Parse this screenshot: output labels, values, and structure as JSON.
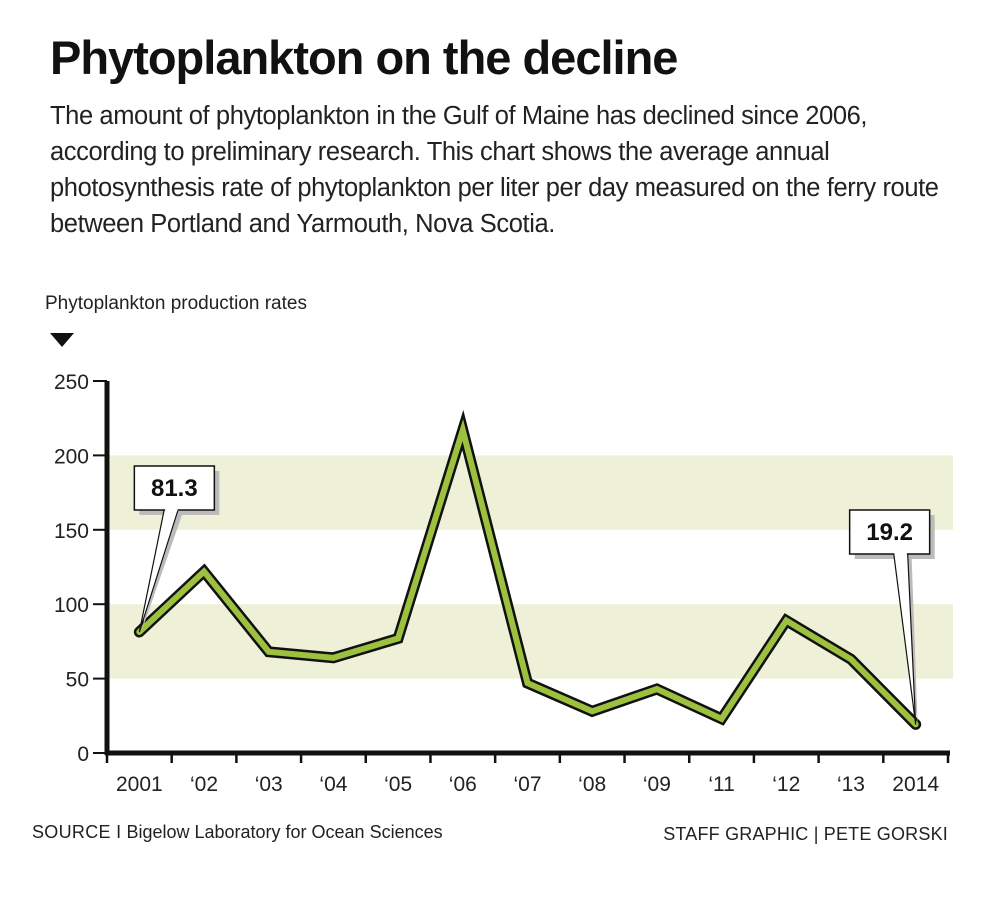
{
  "header": {
    "title": "Phytoplankton on the decline",
    "description": "The amount of phytoplankton in the Gulf of Maine has declined since 2006, according to preliminary research. This chart shows the average annual photosynthesis rate of phytoplankton per liter per day measured on the ferry route between Portland and Yarmouth, Nova Scotia."
  },
  "unit_label": "Phytoplankton production rates",
  "footer": {
    "source_label": "SOURCE I",
    "source": "Bigelow Laboratory for Ocean Sciences",
    "credit": "STAFF GRAPHIC | PETE GORSKI"
  },
  "colors": {
    "line_fill": "#9dc03f",
    "line_outline": "#111111",
    "band": "#eef1d8",
    "axis": "#111111"
  },
  "chart_data": {
    "type": "line",
    "title": "Phytoplankton on the decline",
    "xlabel": "",
    "ylabel": "Phytoplankton production rates",
    "categories": [
      "2001",
      "‘02",
      "‘03",
      "‘04",
      "‘05",
      "‘06",
      "‘07",
      "‘08",
      "‘09",
      "‘11",
      "‘12",
      "‘13",
      "2014"
    ],
    "series": [
      {
        "name": "Phytoplankton production rate",
        "values": [
          81.3,
          122,
          68,
          64,
          77,
          217,
          47,
          28,
          43,
          23,
          89,
          63,
          19.2
        ]
      }
    ],
    "ylim": [
      0,
      250
    ],
    "yticks": [
      0,
      50,
      100,
      150,
      200,
      250
    ],
    "shaded_bands": [
      [
        50,
        100
      ],
      [
        150,
        200
      ]
    ],
    "grid": false,
    "legend": "none",
    "annotations": [
      {
        "category": "2001",
        "label": "81.3"
      },
      {
        "category": "2014",
        "label": "19.2"
      }
    ]
  }
}
